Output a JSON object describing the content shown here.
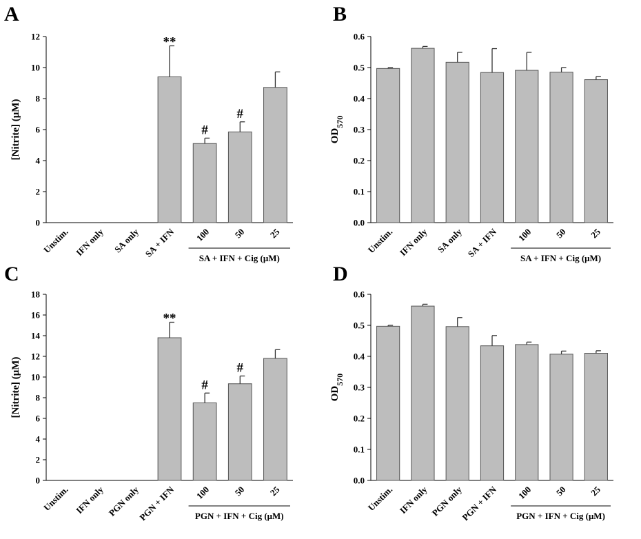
{
  "chart_data": [
    {
      "panel": "A",
      "type": "bar",
      "categories": [
        "Unstim.",
        "IFN only",
        "SA only",
        "SA + IFN",
        "100",
        "50",
        "25"
      ],
      "values": [
        0,
        0,
        0,
        9.4,
        5.1,
        5.85,
        8.72
      ],
      "errors": [
        0,
        0,
        0,
        2.0,
        0.35,
        0.65,
        1.0
      ],
      "annotations": [
        "",
        "",
        "",
        "**",
        "#",
        "#",
        ""
      ],
      "ylabel": "[Nitrite] (μM)",
      "ylim": [
        0,
        12
      ],
      "yticks": [
        "0",
        "2",
        "4",
        "6",
        "8",
        "10",
        "12"
      ],
      "group_label": "SA + IFN + Cig (μM)",
      "bar_color": "#bdbdbd"
    },
    {
      "panel": "B",
      "type": "bar",
      "categories": [
        "Unstim.",
        "IFN only",
        "SA only",
        "SA + IFN",
        "100",
        "50",
        "25"
      ],
      "values": [
        0.497,
        0.562,
        0.517,
        0.484,
        0.491,
        0.485,
        0.461
      ],
      "errors": [
        0.003,
        0.006,
        0.032,
        0.077,
        0.058,
        0.015,
        0.01
      ],
      "annotations": [
        "",
        "",
        "",
        "",
        "",
        "",
        ""
      ],
      "ylabel": "OD570",
      "ylim": [
        0,
        0.6
      ],
      "yticks": [
        "0.0",
        "0.1",
        "0.2",
        "0.3",
        "0.4",
        "0.5",
        "0.6"
      ],
      "group_label": "SA + IFN + Cig (μM)",
      "bar_color": "#bdbdbd"
    },
    {
      "panel": "C",
      "type": "bar",
      "categories": [
        "Unstim.",
        "IFN only",
        "PGN only",
        "PGN + IFN",
        "100",
        "50",
        "25"
      ],
      "values": [
        0,
        0,
        0,
        13.8,
        7.5,
        9.35,
        11.8
      ],
      "errors": [
        0,
        0,
        0,
        1.5,
        0.95,
        0.75,
        0.85
      ],
      "annotations": [
        "",
        "",
        "",
        "**",
        "#",
        "#",
        ""
      ],
      "ylabel": "[Nitrite] (μM)",
      "ylim": [
        0,
        18
      ],
      "yticks": [
        "0",
        "2",
        "4",
        "6",
        "8",
        "10",
        "12",
        "14",
        "16",
        "18"
      ],
      "group_label": "PGN + IFN + Cig (μM)",
      "bar_color": "#bdbdbd"
    },
    {
      "panel": "D",
      "type": "bar",
      "categories": [
        "Unstim.",
        "IFN only",
        "PGN only",
        "PGN + IFN",
        "100",
        "50",
        "25"
      ],
      "values": [
        0.497,
        0.562,
        0.496,
        0.434,
        0.438,
        0.407,
        0.41
      ],
      "errors": [
        0.003,
        0.006,
        0.029,
        0.033,
        0.008,
        0.01,
        0.008
      ],
      "annotations": [
        "",
        "",
        "",
        "",
        "",
        "",
        ""
      ],
      "ylabel": "OD570",
      "ylim": [
        0,
        0.6
      ],
      "yticks": [
        "0.0",
        "0.1",
        "0.2",
        "0.3",
        "0.4",
        "0.5",
        "0.6"
      ],
      "group_label": "PGN + IFN + Cig (μM)",
      "bar_color": "#bdbdbd"
    }
  ]
}
